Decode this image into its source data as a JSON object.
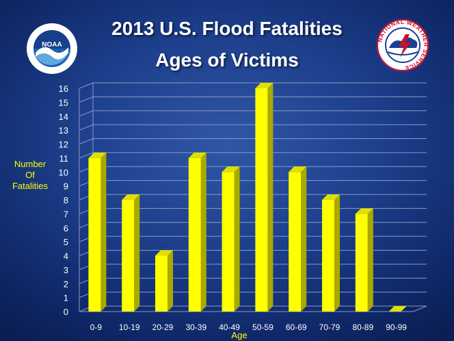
{
  "slide": {
    "title_line1": "2013 U.S. Flood Fatalities",
    "title_line2": "Ages of Victims",
    "logos": {
      "left": {
        "icon": "noaa-logo",
        "text": "NOAA"
      },
      "right": {
        "icon": "nws-logo",
        "text": "NATIONAL WEATHER SERVICE"
      }
    }
  },
  "chart_data": {
    "type": "bar",
    "ylabel_lines": [
      "Number",
      "Of",
      "Fatalities"
    ],
    "xlabel": "Age",
    "categories": [
      "0-9",
      "10-19",
      "20-29",
      "30-39",
      "40-49",
      "50-59",
      "60-69",
      "70-79",
      "80-89",
      "90-99"
    ],
    "values": [
      11,
      8,
      4,
      11,
      10,
      16,
      10,
      8,
      7,
      0
    ],
    "ylim": [
      0,
      16
    ],
    "yticks": [
      0,
      1,
      2,
      3,
      4,
      5,
      6,
      7,
      8,
      9,
      10,
      11,
      12,
      13,
      14,
      15,
      16
    ],
    "grid": true,
    "bar_color": "#ffff00",
    "tick_color": "#ffffff",
    "label_color": "#ffff00"
  }
}
